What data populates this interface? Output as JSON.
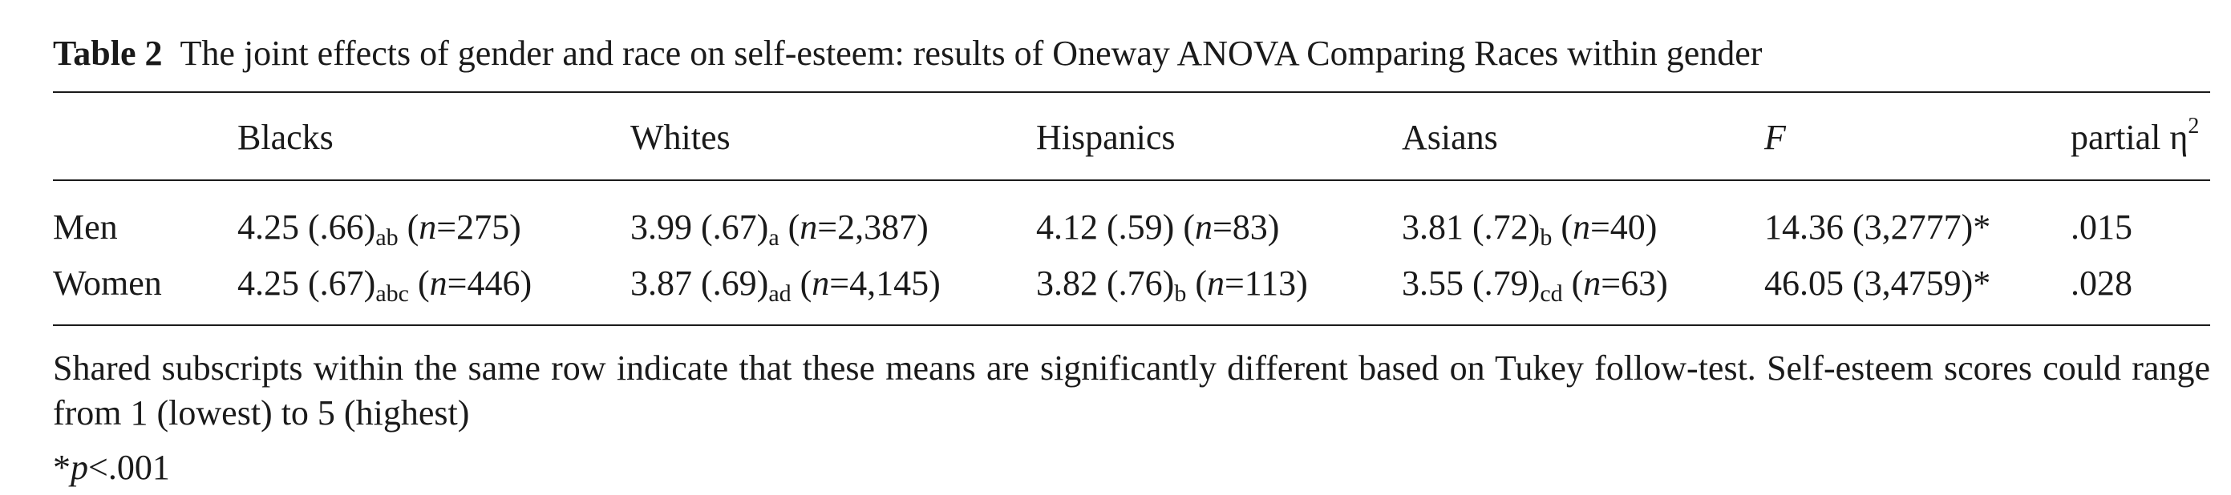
{
  "table": {
    "label": "Table 2",
    "title": "The joint effects of gender and race on self-esteem: results of Oneway ANOVA Comparing Races within gender",
    "columns": [
      "Blacks",
      "Whites",
      "Hispanics",
      "Asians",
      "F",
      "partial η"
    ],
    "partial_eta_superscript": "2",
    "rows": [
      {
        "label": "Men",
        "cells": [
          {
            "mean": "4.25",
            "sd": "(.66)",
            "sub": "ab",
            "n": "275"
          },
          {
            "mean": "3.99",
            "sd": "(.67)",
            "sub": "a",
            "n": "2,387"
          },
          {
            "mean": "4.12",
            "sd": "(.59)",
            "sub": "",
            "n": "83"
          },
          {
            "mean": "3.81",
            "sd": "(.72)",
            "sub": "b",
            "n": "40"
          }
        ],
        "F": "14.36 (3,2777)*",
        "eta": ".015"
      },
      {
        "label": "Women",
        "cells": [
          {
            "mean": "4.25",
            "sd": "(.67)",
            "sub": "abc",
            "n": "446"
          },
          {
            "mean": "3.87",
            "sd": "(.69)",
            "sub": "ad",
            "n": "4,145"
          },
          {
            "mean": "3.82",
            "sd": "(.76)",
            "sub": "b",
            "n": "113"
          },
          {
            "mean": "3.55",
            "sd": "(.79)",
            "sub": "cd",
            "n": "63"
          }
        ],
        "F": "46.05 (3,4759)*",
        "eta": ".028"
      }
    ],
    "n_label": "n",
    "note": "Shared subscripts within the same row indicate that these means are significantly different based on Tukey follow-test. Self-esteem scores could range from 1 (lowest) to 5 (highest)",
    "significance": {
      "prefix": "*",
      "var": "p",
      "text": "<.001"
    }
  }
}
